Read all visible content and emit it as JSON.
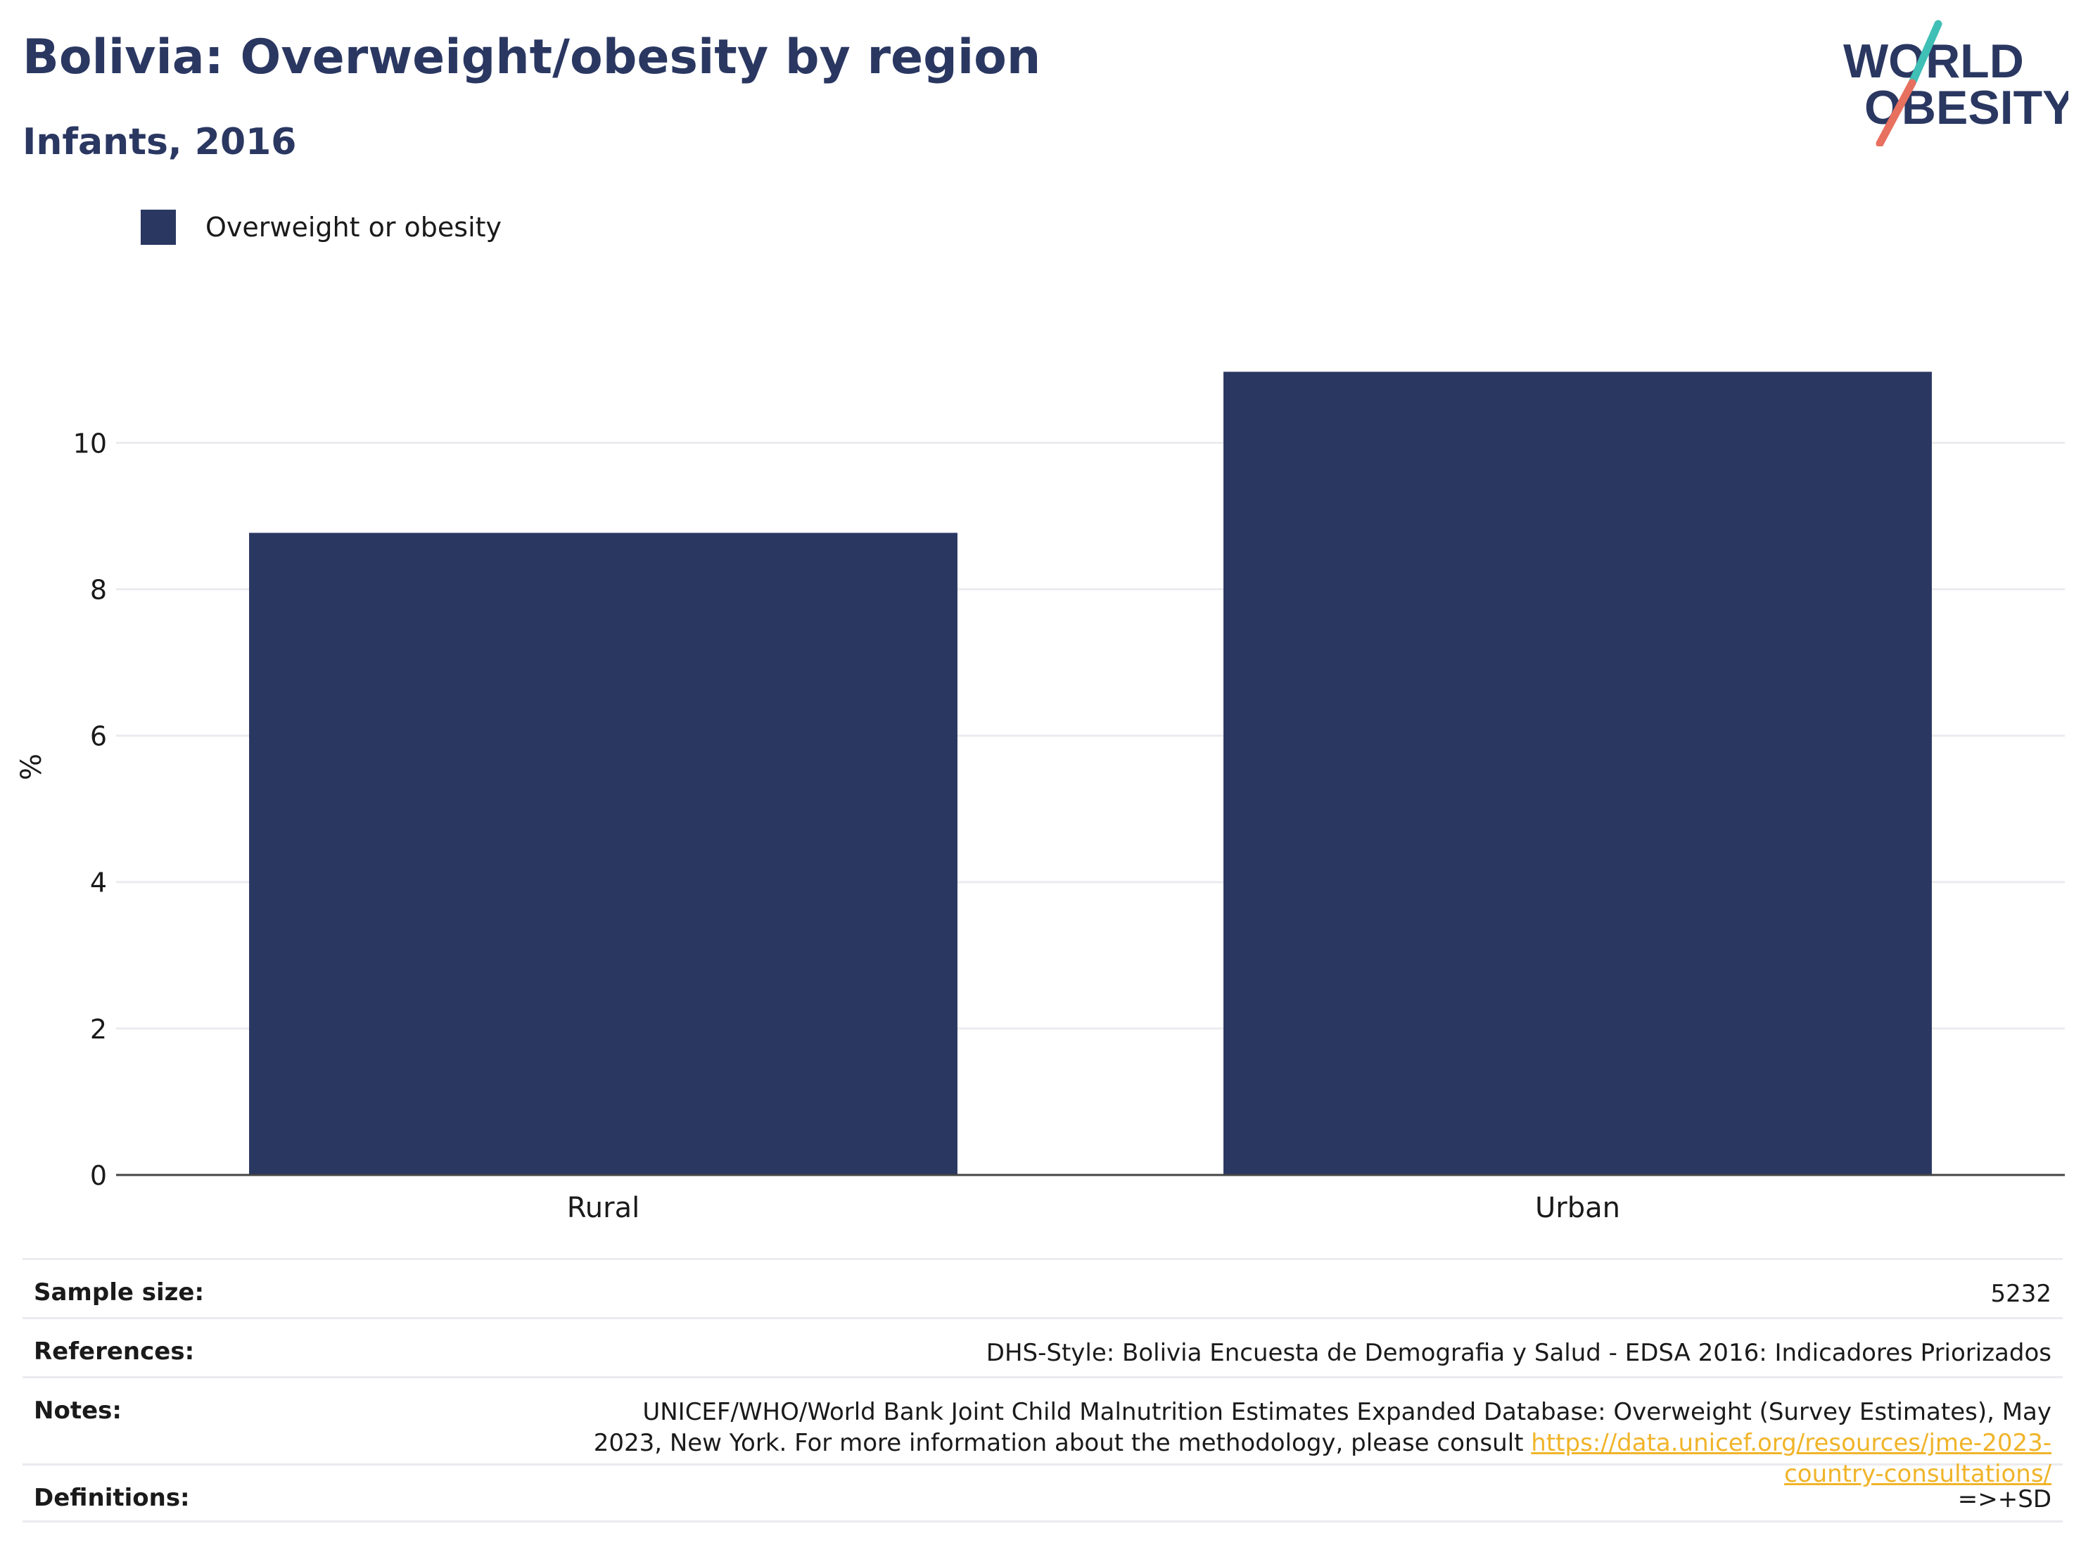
{
  "header": {
    "title": "Bolivia: Overweight/obesity by region",
    "subtitle": "Infants, 2016"
  },
  "logo": {
    "line1": "WORLD",
    "line2": "OBESITY",
    "colors": {
      "text": "#2a3761",
      "slash_top": "#3fbfb5",
      "slash_bottom": "#e8705f"
    }
  },
  "legend": {
    "items": [
      {
        "label": "Overweight or obesity",
        "color": "#2a3761"
      }
    ]
  },
  "chart_data": {
    "type": "bar",
    "categories": [
      "Rural",
      "Urban"
    ],
    "series": [
      {
        "name": "Overweight or obesity",
        "values": [
          8.77,
          10.97
        ],
        "color": "#2a3761"
      }
    ],
    "ylabel": "%",
    "ylim": [
      0,
      12.3
    ],
    "yticks": [
      0,
      2,
      4,
      6,
      8,
      10
    ],
    "grid": true,
    "legend_position": "top-left"
  },
  "info": {
    "sample_size_label": "Sample size:",
    "sample_size_value": "5232",
    "references_label": "References:",
    "references_value": "DHS-Style: Bolivia Encuesta de Demografia y Salud - EDSA 2016: Indicadores Priorizados",
    "notes_label": "Notes:",
    "notes_text": "UNICEF/WHO/World Bank Joint Child Malnutrition Estimates Expanded Database: Overweight (Survey Estimates), May 2023, New York. For more information about the methodology, please consult ",
    "notes_link": "https://data.unicef.org/resources/jme-2023-country-consultations/",
    "definitions_label": "Definitions:",
    "definitions_value": "=>+SD"
  }
}
